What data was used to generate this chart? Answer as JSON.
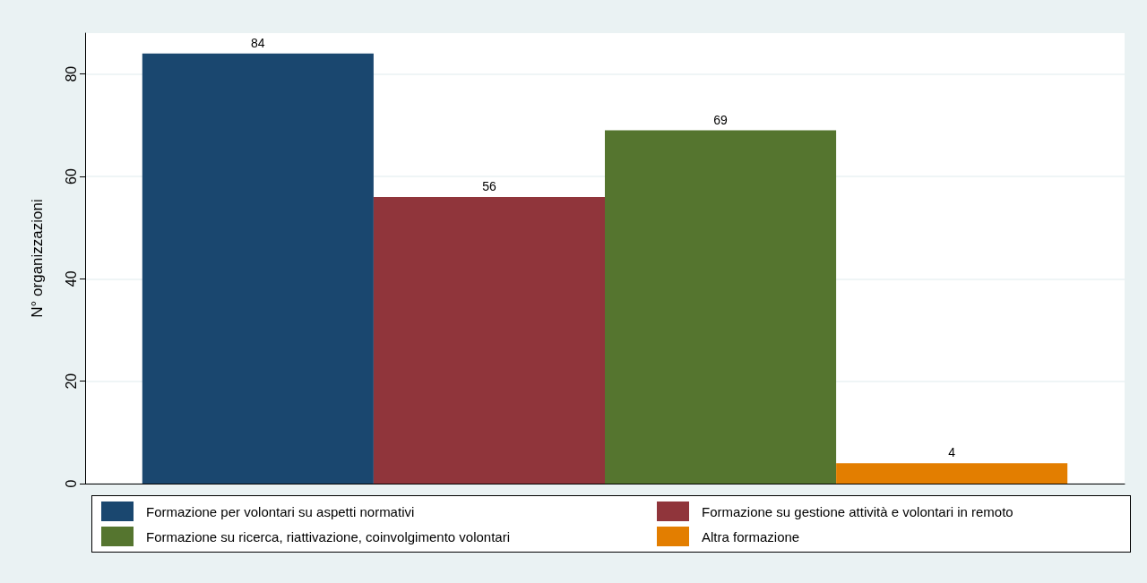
{
  "chart_data": {
    "type": "bar",
    "ylabel": "N° organizzazioni",
    "categories": [
      null
    ],
    "series": [
      {
        "name": "Formazione per volontari su aspetti normativi",
        "color": "#1a476f",
        "values": [
          84
        ]
      },
      {
        "name": "Formazione su gestione attività e volontari in remoto",
        "color": "#90353b",
        "values": [
          56
        ]
      },
      {
        "name": "Formazione su ricerca, riattivazione, coinvolgimento volontari",
        "color": "#55752f",
        "values": [
          69
        ]
      },
      {
        "name": "Altra formazione",
        "color": "#e37e00",
        "values": [
          4
        ]
      }
    ],
    "ylim": [
      0,
      88
    ],
    "yticks": [
      0,
      20,
      40,
      60,
      80
    ],
    "grid": "y",
    "legend": "bottom",
    "data_labels": true
  }
}
